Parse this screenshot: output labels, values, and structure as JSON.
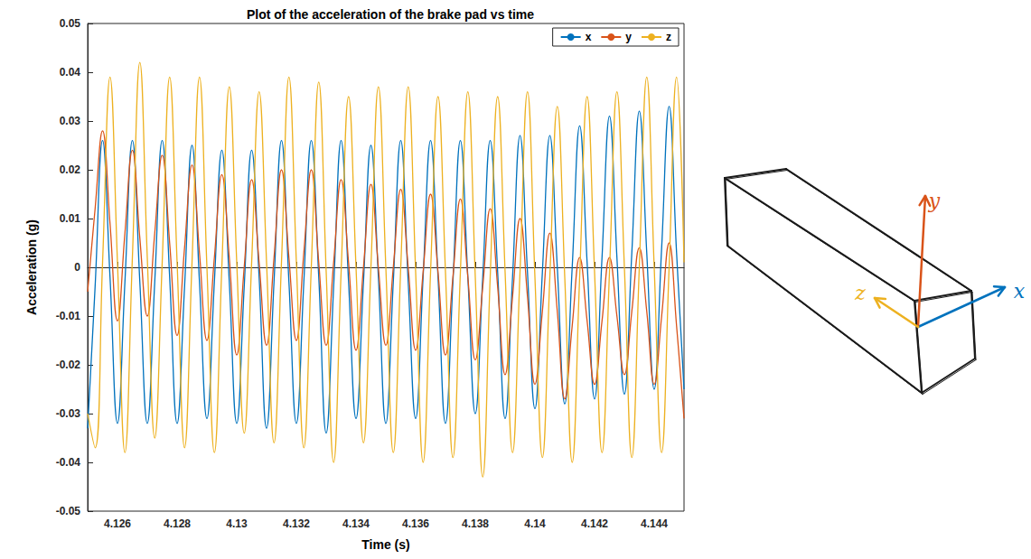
{
  "chart_data": {
    "type": "line",
    "title": "Plot of the acceleration of the brake pad vs time",
    "x_label": "Time (s)",
    "y_label": "Acceleration (g)",
    "x": [
      4.125,
      4.12525,
      4.1255,
      4.12575,
      4.126,
      4.12625,
      4.1265,
      4.12675,
      4.127,
      4.12725,
      4.1275,
      4.12775,
      4.128,
      4.12825,
      4.1285,
      4.12875,
      4.129,
      4.12925,
      4.1295,
      4.12975,
      4.13,
      4.13025,
      4.1305,
      4.13075,
      4.131,
      4.13125,
      4.1315,
      4.13175,
      4.132,
      4.13225,
      4.1325,
      4.13275,
      4.133,
      4.13325,
      4.1335,
      4.13375,
      4.134,
      4.13425,
      4.1345,
      4.13475,
      4.135,
      4.13525,
      4.1355,
      4.13575,
      4.136,
      4.13625,
      4.1365,
      4.13675,
      4.137,
      4.13725,
      4.1375,
      4.13775,
      4.138,
      4.13825,
      4.1385,
      4.13875,
      4.139,
      4.13925,
      4.1395,
      4.13975,
      4.14,
      4.14025,
      4.1405,
      4.14075,
      4.141,
      4.14125,
      4.1415,
      4.14175,
      4.142,
      4.14225,
      4.1425,
      4.14275,
      4.143,
      4.14325,
      4.1435,
      4.14375,
      4.144,
      4.14425,
      4.1445,
      4.14475,
      4.145
    ],
    "series": [
      {
        "name": "x",
        "color": "#0072BD",
        "values": [
          -0.033,
          -0.004,
          0.026,
          -0.002,
          -0.032,
          -0.003,
          0.026,
          -0.003,
          -0.032,
          -0.003,
          0.026,
          -0.002,
          -0.032,
          -0.004,
          0.025,
          -0.003,
          -0.031,
          -0.003,
          0.024,
          -0.003,
          -0.032,
          -0.004,
          0.024,
          -0.002,
          -0.033,
          -0.003,
          0.026,
          -0.003,
          -0.032,
          -0.003,
          0.026,
          -0.002,
          -0.034,
          -0.004,
          0.026,
          -0.003,
          -0.031,
          -0.003,
          0.025,
          -0.002,
          -0.032,
          -0.003,
          0.026,
          -0.003,
          -0.031,
          -0.002,
          0.026,
          -0.002,
          -0.032,
          -0.003,
          0.026,
          -0.002,
          -0.03,
          -0.002,
          0.026,
          -0.001,
          -0.031,
          -0.002,
          0.027,
          -0.001,
          -0.029,
          -0.001,
          0.027,
          0,
          -0.028,
          0,
          0.029,
          0.001,
          -0.027,
          0.002,
          0.031,
          0.002,
          -0.026,
          0.003,
          0.032,
          0.003,
          -0.025,
          0.004,
          0.033,
          0.003,
          -0.025
        ]
      },
      {
        "name": "y",
        "color": "#D95319",
        "values": [
          -0.005,
          0.012,
          0.028,
          0.009,
          -0.011,
          0.007,
          0.024,
          0.006,
          -0.01,
          0.007,
          0.023,
          0.005,
          -0.014,
          0.004,
          0.021,
          0.003,
          -0.015,
          0.002,
          0.019,
          0.002,
          -0.018,
          0,
          0.018,
          0.001,
          -0.016,
          0.002,
          0.02,
          0.002,
          -0.015,
          0.003,
          0.02,
          0.001,
          -0.016,
          0.001,
          0.018,
          0.001,
          -0.017,
          0,
          0.017,
          0,
          -0.016,
          0,
          0.016,
          0,
          -0.017,
          -0.001,
          0.015,
          -0.001,
          -0.018,
          -0.002,
          0.014,
          -0.002,
          -0.019,
          -0.004,
          0.012,
          -0.004,
          -0.022,
          -0.006,
          0.01,
          -0.006,
          -0.024,
          -0.009,
          0.007,
          -0.009,
          -0.027,
          -0.012,
          0.002,
          -0.011,
          -0.024,
          -0.011,
          0.002,
          -0.01,
          -0.022,
          -0.009,
          0.004,
          -0.009,
          -0.024,
          -0.01,
          0.005,
          -0.012,
          -0.031
        ]
      },
      {
        "name": "z",
        "color": "#EDB120",
        "values": [
          -0.03,
          -0.037,
          0.001,
          0.039,
          0.001,
          -0.038,
          0.002,
          0.042,
          0.002,
          -0.035,
          0.001,
          0.039,
          0.001,
          -0.037,
          0.001,
          0.039,
          0,
          -0.038,
          0,
          0.037,
          0.001,
          -0.034,
          0.001,
          0.036,
          0.001,
          -0.036,
          0.001,
          0.039,
          0.001,
          -0.037,
          0,
          0.038,
          -0.001,
          -0.04,
          -0.001,
          0.035,
          0,
          -0.036,
          0,
          0.037,
          0,
          -0.038,
          0,
          0.037,
          -0.001,
          -0.04,
          -0.001,
          0.035,
          -0.001,
          -0.039,
          -0.001,
          0.036,
          -0.002,
          -0.043,
          -0.002,
          0.035,
          -0.001,
          -0.038,
          -0.001,
          0.036,
          -0.002,
          -0.039,
          -0.002,
          0.033,
          -0.002,
          -0.04,
          -0.002,
          0.035,
          -0.001,
          -0.038,
          -0.001,
          0.036,
          0,
          -0.039,
          0,
          0.039,
          0,
          -0.038,
          0,
          0.039,
          0.001
        ]
      }
    ],
    "xlim": [
      4.125,
      4.145
    ],
    "xticks": [
      4.126,
      4.128,
      4.13,
      4.132,
      4.134,
      4.136,
      4.138,
      4.14,
      4.142,
      4.144
    ],
    "ylim": [
      -0.05,
      0.05
    ],
    "yticks": [
      -0.05,
      -0.04,
      -0.03,
      -0.02,
      -0.01,
      0,
      0.01,
      0.02,
      0.03,
      0.04,
      0.05
    ],
    "grid": false,
    "legend": "upper right"
  },
  "diagram": {
    "axis_labels": [
      "x",
      "y",
      "z"
    ]
  }
}
